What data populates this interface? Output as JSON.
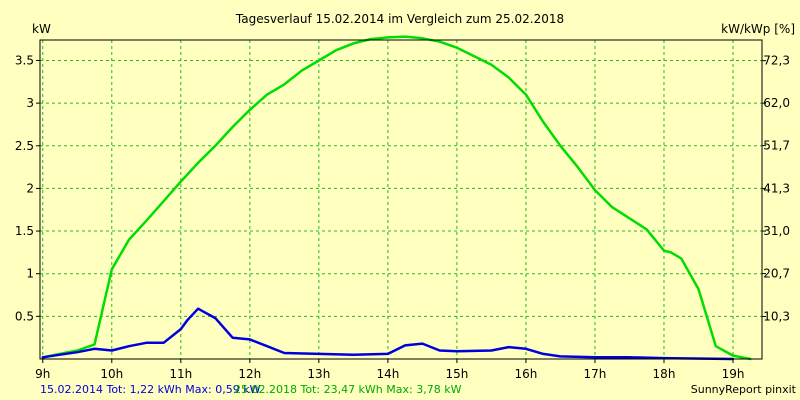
{
  "chart_data": {
    "type": "line",
    "title": "Tagesverlauf 15.02.2014 im Vergleich zum 25.02.2018",
    "ylabel_left": "kW",
    "ylabel_right": "kW/kWp [%]",
    "x_tick_labels": [
      "9h",
      "10h",
      "11h",
      "12h",
      "13h",
      "14h",
      "15h",
      "16h",
      "17h",
      "18h",
      "19h"
    ],
    "x_ticks": [
      9,
      10,
      11,
      12,
      13,
      14,
      15,
      16,
      17,
      18,
      19
    ],
    "xlim": [
      8.96,
      19.42
    ],
    "y_ticks": [
      0.5,
      1,
      1.5,
      2,
      2.5,
      3,
      3.5
    ],
    "y_tick_labels": [
      "0.5",
      "1",
      "1.5",
      "2",
      "2.5",
      "3",
      "3.5"
    ],
    "ylim": [
      0,
      3.74
    ],
    "y2_ticks": [
      10.3,
      20.7,
      31.0,
      41.3,
      51.7,
      62.0,
      72.3
    ],
    "y2_tick_labels": [
      "10,3",
      "20,7",
      "31,0",
      "41,3",
      "51,7",
      "62,0",
      "72,3"
    ],
    "y2lim": [
      0,
      77.3
    ],
    "grid": true,
    "series": [
      {
        "name": "15.02.2014",
        "color": "#0000dd",
        "x": [
          9.0,
          9.25,
          9.5,
          9.75,
          10.0,
          10.25,
          10.5,
          10.75,
          11.0,
          11.1,
          11.25,
          11.5,
          11.75,
          12.0,
          12.25,
          12.5,
          13.0,
          13.5,
          14.0,
          14.25,
          14.5,
          14.75,
          15.0,
          15.5,
          15.75,
          16.0,
          16.25,
          16.5,
          17.0,
          17.5,
          18.0,
          19.0
        ],
        "y": [
          0.02,
          0.05,
          0.08,
          0.12,
          0.1,
          0.15,
          0.19,
          0.19,
          0.35,
          0.46,
          0.59,
          0.48,
          0.25,
          0.23,
          0.15,
          0.07,
          0.06,
          0.05,
          0.06,
          0.16,
          0.18,
          0.1,
          0.09,
          0.1,
          0.14,
          0.12,
          0.06,
          0.03,
          0.02,
          0.02,
          0.01,
          0.0
        ]
      },
      {
        "name": "25.02.2018",
        "color": "#00dd00",
        "x": [
          9.0,
          9.25,
          9.5,
          9.75,
          10.0,
          10.25,
          10.5,
          10.75,
          11.0,
          11.25,
          11.5,
          11.75,
          12.0,
          12.25,
          12.5,
          12.75,
          13.0,
          13.25,
          13.5,
          13.75,
          14.0,
          14.25,
          14.5,
          14.75,
          15.0,
          15.25,
          15.5,
          15.75,
          16.0,
          16.25,
          16.5,
          16.75,
          17.0,
          17.25,
          17.5,
          17.75,
          18.0,
          18.1,
          18.25,
          18.5,
          18.75,
          19.0,
          19.25
        ],
        "y": [
          0.02,
          0.06,
          0.1,
          0.17,
          1.05,
          1.4,
          1.62,
          1.85,
          2.08,
          2.3,
          2.5,
          2.72,
          2.92,
          3.1,
          3.22,
          3.38,
          3.5,
          3.62,
          3.7,
          3.75,
          3.77,
          3.78,
          3.76,
          3.72,
          3.65,
          3.55,
          3.45,
          3.3,
          3.1,
          2.78,
          2.5,
          2.25,
          1.98,
          1.78,
          1.65,
          1.52,
          1.27,
          1.25,
          1.18,
          0.82,
          0.15,
          0.04,
          0.0
        ]
      }
    ]
  },
  "footer": {
    "series1_text": "15.02.2014 Tot: 1,22 kWh Max: 0,59 kW",
    "series2_text": "25.02.2018 Tot: 23,47 kWh Max: 3,78 kW",
    "brand": "SunnyReport pinxit"
  },
  "colors": {
    "background": "#ffffc0",
    "grid": "#22bb22",
    "axis": "#000000"
  }
}
